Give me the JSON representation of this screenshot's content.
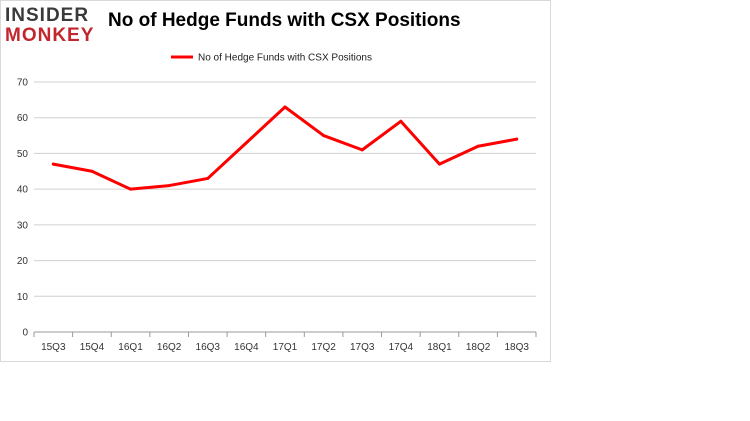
{
  "logo": {
    "line1": "INSIDER",
    "line2": "MONKEY"
  },
  "chart_data": {
    "type": "line",
    "title": "No of Hedge Funds with CSX Positions",
    "xlabel": "",
    "ylabel": "",
    "categories": [
      "15Q3",
      "15Q4",
      "16Q1",
      "16Q2",
      "16Q3",
      "16Q4",
      "17Q1",
      "17Q2",
      "17Q3",
      "17Q4",
      "18Q1",
      "18Q2",
      "18Q3"
    ],
    "series": [
      {
        "name": "No of Hedge Funds with CSX Positions",
        "values": [
          47,
          45,
          40,
          41,
          43,
          53,
          63,
          55,
          51,
          59,
          47,
          52,
          54
        ],
        "color": "#ff0000"
      }
    ],
    "ylim": [
      0,
      70
    ],
    "yticks": [
      0,
      10,
      20,
      30,
      40,
      50,
      60,
      70
    ],
    "grid": true,
    "legend": "top-center"
  }
}
